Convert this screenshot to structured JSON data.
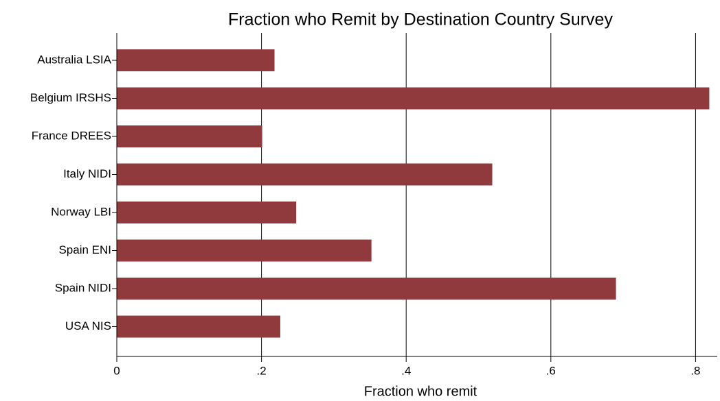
{
  "chart_data": {
    "type": "barh",
    "title": "Fraction who Remit by Destination Country Survey",
    "xlabel": "Fraction who remit",
    "categories": [
      "Australia LSIA",
      "Belgium IRSHS",
      "France DREES",
      "Italy NIDI",
      "Norway LBI",
      "Spain ENI",
      "Spain NIDI",
      "USA NIS"
    ],
    "values": [
      0.218,
      0.819,
      0.201,
      0.519,
      0.248,
      0.352,
      0.69,
      0.226
    ],
    "color": "#903a3e",
    "xlim": [
      0,
      0.83
    ],
    "xticks": [
      0,
      {
        "value": 0.2,
        "label": ".2"
      },
      {
        "value": 0.4,
        "label": ".4"
      },
      {
        "value": 0.6,
        "label": ".6"
      },
      {
        "value": 0.8,
        "label": ".8"
      }
    ],
    "grid": true
  }
}
